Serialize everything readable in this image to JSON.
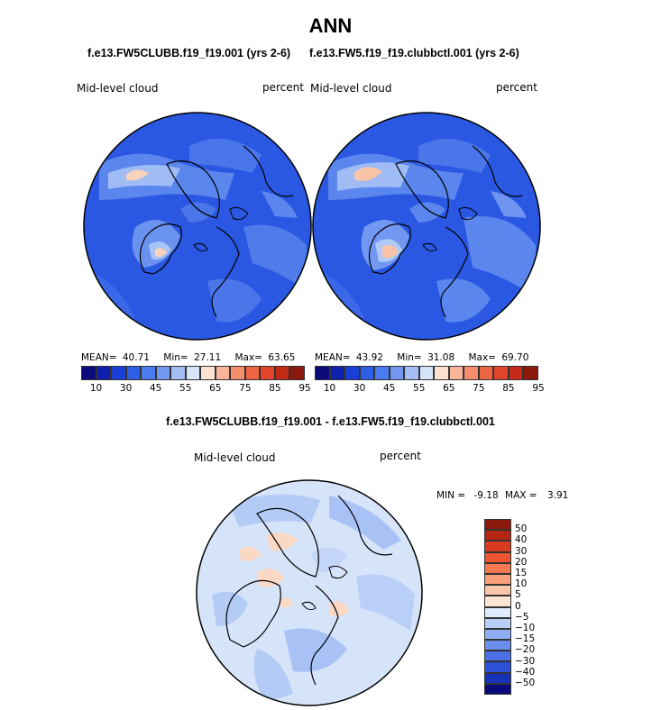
{
  "title": "ANN",
  "panel_left": {
    "case_title": "f.e13.FW5CLUBB.f19_f19.001 (yrs 2-6)",
    "variable_label": "Mid-level cloud",
    "units_label": "percent",
    "stats": {
      "mean_label": "MEAN=",
      "mean": "40.71",
      "min_label": "Min=",
      "min": "27.11",
      "max_label": "Max=",
      "max": "63.65"
    }
  },
  "panel_right": {
    "case_title": "f.e13.FW5.f19_f19.clubbctl.001 (yrs 2-6)",
    "variable_label": "Mid-level cloud",
    "units_label": "percent",
    "stats": {
      "mean_label": "MEAN=",
      "mean": "43.92",
      "min_label": "Min=",
      "min": "31.08",
      "max_label": "Max=",
      "max": "69.70"
    }
  },
  "panel_diff": {
    "title": "f.e13.FW5CLUBB.f19_f19.001 - f.e13.FW5.f19_f19.clubbctl.001",
    "variable_label": "Mid-level cloud",
    "units_label": "percent",
    "stats": {
      "min_label": "MIN =",
      "min": "-9.18",
      "max_label": "MAX =",
      "max": "3.91"
    }
  },
  "colorbar_abs": {
    "tick_labels": [
      "10",
      "30",
      "45",
      "55",
      "65",
      "75",
      "85",
      "95"
    ],
    "colors": [
      "#0a0a7a",
      "#0f1fb0",
      "#1a3fd6",
      "#2d5ee6",
      "#4a7cef",
      "#7298f2",
      "#a4bdf5",
      "#d6e4fa",
      "#fbe0cf",
      "#f8b59a",
      "#f38d6c",
      "#ee6543",
      "#e0442a",
      "#c42a17",
      "#8c1a0c"
    ]
  },
  "colorbar_diff": {
    "tick_labels": [
      "50",
      "40",
      "30",
      "20",
      "15",
      "10",
      "5",
      "0",
      "−5",
      "−10",
      "−15",
      "−20",
      "−30",
      "−40",
      "−50"
    ],
    "colors": [
      "#8c1a0c",
      "#b52512",
      "#d83a1f",
      "#ec5530",
      "#f37a50",
      "#f7a07a",
      "#fac6aa",
      "#fde4d3",
      "#e0ecfb",
      "#b9cff7",
      "#8eaef2",
      "#6a8fec",
      "#4a70e5",
      "#2c50d6",
      "#1533b8",
      "#0a0a7a"
    ]
  },
  "colors": {
    "ocean_mid": "#3a68e8",
    "ocean_light": "#6f95f0",
    "diff_bg": "#d6e4fa"
  }
}
